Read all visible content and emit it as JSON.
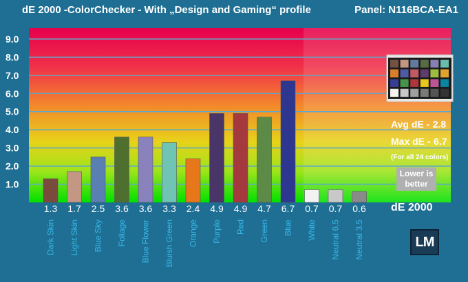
{
  "header": {
    "title": "dE 2000 -ColorChecker - With „Design and Gaming“ profile",
    "panel": "Panel: N116BCA-EA1"
  },
  "stats": {
    "avg_label": "Avg dE -",
    "avg_value": "2.8",
    "max_label": "Max dE -",
    "max_value": "6.7",
    "note": "(For all 24 colors)",
    "lower_line1": "Lower is",
    "lower_line2": "better",
    "unit_label": "dE 2000",
    "logo_text": "LM"
  },
  "colors": {
    "background": "#1e6f93",
    "grid": "#5fa8c9",
    "plot_top": "#e6004c",
    "plot_bottom": "#00e000"
  },
  "chart_data": {
    "type": "bar",
    "ylim": [
      0,
      9.6
    ],
    "yticks": [
      "1.0",
      "2.0",
      "3.0",
      "4.0",
      "5.0",
      "6.0",
      "7.0",
      "8.0",
      "9.0"
    ],
    "categories": [
      "Dark Skin",
      "Light Skin",
      "Blue Sky",
      "Foliage",
      "Blue Flower",
      "Bluish Green",
      "Orange",
      "Purple",
      "Red",
      "Green",
      "Blue",
      "White",
      "Neutral 6.5",
      "Neutral 3.5"
    ],
    "values": [
      1.3,
      1.7,
      2.5,
      3.6,
      3.6,
      3.3,
      2.4,
      4.9,
      4.9,
      4.7,
      6.7,
      0.7,
      0.7,
      0.6
    ],
    "value_labels": [
      "1.3",
      "1.7",
      "2.5",
      "3.6",
      "3.6",
      "3.3",
      "2.4",
      "4.9",
      "4.9",
      "4.7",
      "6.7",
      "0.7",
      "0.7",
      "0.6"
    ],
    "bar_colors": [
      "#7a4a3c",
      "#c49684",
      "#5a7fb3",
      "#4e6f2e",
      "#8a82bd",
      "#6fc4b4",
      "#e8761a",
      "#4a3568",
      "#a53a3e",
      "#5e8a48",
      "#2d3790",
      "#f2f2f2",
      "#c8c8c8",
      "#8a8a8a"
    ],
    "checker_colors": [
      "#735244",
      "#c29682",
      "#627a9d",
      "#576c43",
      "#8580b1",
      "#67bdaa",
      "#d67e2c",
      "#505ba6",
      "#c15a63",
      "#5e3c6c",
      "#9dbc40",
      "#e0a32e",
      "#383d96",
      "#469449",
      "#af363c",
      "#e7c71f",
      "#bb5695",
      "#0885a1",
      "#f3f3f2",
      "#c8c8c8",
      "#a0a0a0",
      "#7a7a79",
      "#555555",
      "#343434"
    ]
  }
}
